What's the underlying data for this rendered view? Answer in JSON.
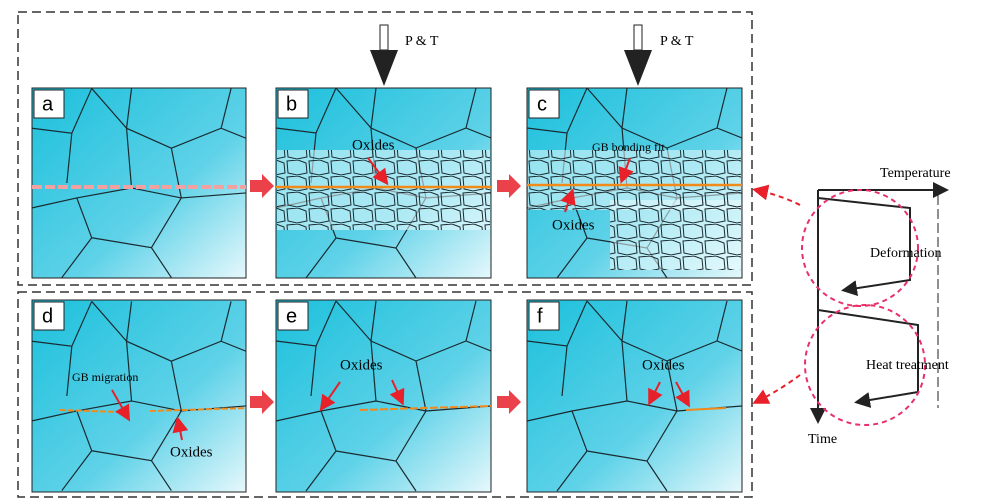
{
  "load_labels": [
    "P & T",
    "P & T"
  ],
  "panels": [
    {
      "label": "a",
      "annotations": []
    },
    {
      "label": "b",
      "annotations": [
        "Oxides"
      ]
    },
    {
      "label": "c",
      "annotations": [
        "GB bonding fit",
        "Oxides"
      ]
    },
    {
      "label": "d",
      "annotations": [
        "GB migration",
        "Oxides"
      ]
    },
    {
      "label": "e",
      "annotations": [
        "Oxides"
      ]
    },
    {
      "label": "f",
      "annotations": [
        "Oxides"
      ]
    }
  ],
  "process": {
    "temperature_label": "Temperature",
    "time_label": "Time",
    "stages": [
      "Deformation",
      "Heat treatment"
    ]
  }
}
